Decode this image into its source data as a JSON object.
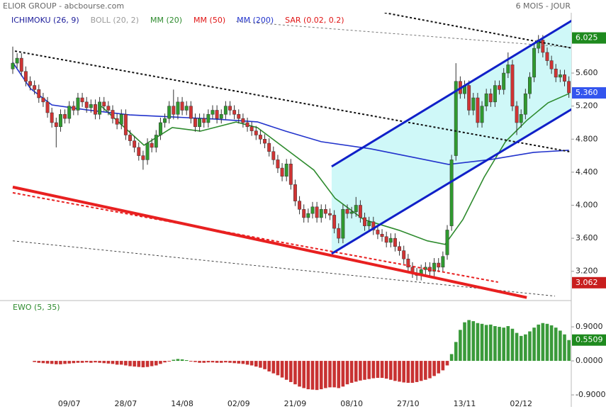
{
  "chart_data": [
    {
      "type": "candlestick",
      "title": "ELIOR GROUP - abcbourse.com",
      "period": "6 MOIS - JOUR",
      "categories": [
        null,
        null,
        null,
        null,
        null,
        null,
        null,
        null,
        null,
        null,
        null,
        null,
        null,
        "09/07",
        null,
        null,
        null,
        null,
        null,
        null,
        null,
        null,
        null,
        null,
        null,
        null,
        "28/07",
        null,
        null,
        null,
        null,
        null,
        null,
        null,
        null,
        null,
        null,
        null,
        null,
        "14/08",
        null,
        null,
        null,
        null,
        null,
        null,
        null,
        null,
        null,
        null,
        null,
        null,
        "02/09",
        null,
        null,
        null,
        null,
        null,
        null,
        null,
        null,
        null,
        null,
        null,
        null,
        "21/09",
        null,
        null,
        null,
        null,
        null,
        null,
        null,
        null,
        null,
        null,
        null,
        null,
        "08/10",
        null,
        null,
        null,
        null,
        null,
        null,
        null,
        null,
        null,
        null,
        null,
        null,
        "27/10",
        null,
        null,
        null,
        null,
        null,
        null,
        null,
        null,
        null,
        null,
        null,
        null,
        "13/11",
        null,
        null,
        null,
        null,
        null,
        null,
        null,
        null,
        null,
        null,
        null,
        null,
        "02/12",
        null,
        null,
        null,
        null,
        null,
        null,
        null,
        null,
        null,
        null,
        null
      ],
      "open": [
        5.65,
        5.72,
        5.78,
        5.62,
        5.5,
        5.45,
        5.4,
        5.3,
        5.25,
        5.12,
        5.0,
        4.95,
        5.1,
        5.05,
        5.2,
        5.15,
        5.3,
        5.25,
        5.18,
        5.22,
        5.1,
        5.25,
        5.2,
        5.15,
        5.05,
        4.98,
        5.1,
        4.85,
        4.78,
        4.7,
        4.6,
        4.55,
        4.75,
        4.7,
        4.85,
        5.0,
        5.05,
        5.2,
        5.1,
        5.25,
        5.15,
        5.2,
        5.05,
        4.95,
        5.05,
        5.0,
        5.1,
        5.15,
        5.05,
        5.1,
        5.2,
        5.15,
        5.1,
        5.05,
        5.0,
        4.95,
        4.9,
        4.85,
        4.8,
        4.75,
        4.65,
        4.55,
        4.45,
        4.35,
        4.5,
        4.25,
        4.05,
        3.95,
        3.85,
        3.9,
        3.98,
        3.85,
        3.95,
        3.9,
        3.88,
        3.72,
        3.6,
        3.95,
        3.9,
        3.92,
        4.0,
        3.85,
        3.75,
        3.8,
        3.7,
        3.65,
        3.62,
        3.55,
        3.6,
        3.5,
        3.45,
        3.35,
        3.25,
        3.18,
        3.15,
        3.22,
        3.25,
        3.2,
        3.3,
        3.25,
        3.4,
        3.75,
        4.6,
        5.5,
        5.35,
        5.45,
        5.15,
        5.3,
        5.0,
        5.2,
        5.35,
        5.25,
        5.45,
        5.4,
        5.6,
        5.7,
        5.2,
        5.0,
        5.1,
        5.35,
        5.55,
        5.9,
        6.0,
        5.85,
        5.75,
        5.65,
        5.55,
        5.58,
        5.5
      ],
      "high": [
        5.92,
        5.84,
        5.84,
        5.68,
        5.56,
        5.51,
        5.46,
        5.36,
        5.31,
        5.18,
        5.06,
        5.16,
        5.16,
        5.26,
        5.26,
        5.36,
        5.36,
        5.31,
        5.28,
        5.28,
        5.31,
        5.31,
        5.26,
        5.21,
        5.11,
        5.16,
        5.16,
        4.91,
        4.84,
        4.76,
        4.66,
        4.81,
        4.81,
        4.91,
        5.06,
        5.11,
        5.26,
        5.4,
        5.31,
        5.31,
        5.26,
        5.26,
        5.11,
        5.11,
        5.11,
        5.16,
        5.21,
        5.21,
        5.16,
        5.26,
        5.26,
        5.21,
        5.16,
        5.11,
        5.06,
        5.01,
        4.96,
        4.91,
        4.86,
        4.81,
        4.71,
        4.61,
        4.51,
        4.56,
        4.56,
        4.31,
        4.11,
        4.01,
        3.96,
        4.04,
        4.04,
        4.01,
        4.01,
        3.96,
        3.94,
        3.78,
        4.01,
        4.01,
        3.98,
        4.1,
        4.06,
        3.91,
        3.86,
        3.86,
        3.76,
        3.71,
        3.68,
        3.66,
        3.66,
        3.56,
        3.51,
        3.41,
        3.31,
        3.24,
        3.28,
        3.31,
        3.31,
        3.36,
        3.36,
        3.44,
        3.76,
        4.61,
        5.72,
        5.56,
        5.51,
        5.51,
        5.36,
        5.36,
        5.26,
        5.41,
        5.41,
        5.51,
        5.51,
        5.66,
        5.85,
        5.76,
        5.26,
        5.16,
        5.41,
        5.61,
        5.96,
        6.06,
        6.06,
        5.91,
        5.81,
        5.71,
        5.64,
        5.64,
        5.56
      ],
      "low": [
        5.59,
        5.66,
        5.56,
        5.44,
        5.39,
        5.34,
        5.24,
        5.19,
        5.06,
        4.94,
        4.7,
        4.89,
        4.99,
        4.99,
        5.09,
        5.09,
        5.19,
        5.12,
        5.12,
        5.04,
        5.04,
        5.14,
        5.09,
        4.99,
        4.92,
        4.92,
        4.79,
        4.72,
        4.64,
        4.54,
        4.43,
        4.49,
        4.64,
        4.64,
        4.79,
        4.94,
        4.99,
        5.04,
        5.04,
        5.09,
        5.09,
        4.99,
        4.89,
        4.89,
        4.94,
        4.94,
        5.04,
        4.99,
        4.99,
        5.04,
        5.09,
        5.04,
        4.99,
        4.94,
        4.89,
        4.84,
        4.79,
        4.74,
        4.69,
        4.59,
        4.49,
        4.39,
        4.29,
        4.29,
        4.19,
        3.99,
        3.89,
        3.79,
        3.79,
        3.84,
        3.79,
        3.79,
        3.84,
        3.82,
        3.66,
        3.54,
        3.54,
        3.84,
        3.84,
        3.86,
        3.79,
        3.69,
        3.69,
        3.64,
        3.59,
        3.56,
        3.49,
        3.49,
        3.44,
        3.39,
        3.29,
        3.19,
        3.12,
        3.09,
        3.09,
        3.16,
        3.14,
        3.14,
        3.19,
        3.19,
        3.34,
        3.69,
        4.54,
        5.29,
        5.29,
        5.09,
        5.09,
        4.94,
        4.94,
        5.14,
        5.19,
        5.19,
        5.34,
        5.34,
        5.54,
        5.14,
        4.85,
        4.94,
        5.04,
        5.29,
        5.49,
        5.84,
        5.79,
        5.69,
        5.59,
        5.49,
        5.49,
        5.44,
        5.3
      ],
      "close": [
        5.72,
        5.78,
        5.62,
        5.5,
        5.45,
        5.4,
        5.3,
        5.25,
        5.12,
        5.0,
        4.95,
        5.1,
        5.05,
        5.2,
        5.15,
        5.3,
        5.25,
        5.18,
        5.22,
        5.1,
        5.25,
        5.2,
        5.15,
        5.05,
        4.98,
        5.1,
        4.85,
        4.78,
        4.7,
        4.6,
        4.55,
        4.75,
        4.7,
        4.85,
        5.0,
        5.05,
        5.2,
        5.1,
        5.25,
        5.15,
        5.2,
        5.05,
        4.95,
        5.05,
        5.0,
        5.1,
        5.15,
        5.05,
        5.1,
        5.2,
        5.15,
        5.1,
        5.05,
        5.0,
        4.95,
        4.9,
        4.85,
        4.8,
        4.75,
        4.65,
        4.55,
        4.45,
        4.35,
        4.5,
        4.25,
        4.05,
        3.95,
        3.85,
        3.9,
        3.98,
        3.85,
        3.95,
        3.9,
        3.88,
        3.72,
        3.6,
        3.95,
        3.9,
        3.92,
        4.0,
        3.85,
        3.75,
        3.8,
        3.7,
        3.65,
        3.62,
        3.55,
        3.6,
        3.5,
        3.45,
        3.35,
        3.25,
        3.18,
        3.15,
        3.22,
        3.25,
        3.2,
        3.3,
        3.25,
        3.38,
        3.7,
        4.55,
        5.5,
        5.35,
        5.45,
        5.15,
        5.3,
        5.0,
        5.2,
        5.35,
        5.25,
        5.45,
        5.4,
        5.6,
        5.7,
        5.2,
        5.0,
        5.1,
        5.35,
        5.55,
        5.9,
        6.0,
        5.85,
        5.75,
        5.65,
        5.55,
        5.58,
        5.5,
        5.36
      ],
      "up_color": "#2f9a2f",
      "down_color": "#d03434",
      "ylim": [
        2.88,
        6.33
      ],
      "yticks": [
        {
          "value": 3.2,
          "label": "3.200"
        },
        {
          "value": 3.6,
          "label": "3.600"
        },
        {
          "value": 4.0,
          "label": "4.000"
        },
        {
          "value": 4.4,
          "label": "4.400"
        },
        {
          "value": 4.8,
          "label": "4.800"
        },
        {
          "value": 5.2,
          "label": "5.200"
        },
        {
          "value": 5.6,
          "label": "5.600"
        }
      ],
      "indicators": [
        {
          "name": "ICHIMOKU (26, 9)",
          "color": "#1b1b9a"
        },
        {
          "name": "BOLL (20, 2)",
          "color": "#9a9a9a"
        },
        {
          "name": "MM (20)",
          "color": "#2e8b2e",
          "x": [
            20.4,
            30.2,
            36.7,
            43.2,
            51.4,
            56.3,
            62.8,
            69.3,
            74.2,
            80.8,
            88.9,
            95.4,
            99.5,
            103.6,
            108.5,
            113.4,
            118.3,
            123.2,
            128
          ],
          "values": [
            5.197,
            4.726,
            4.94,
            4.897,
            5.008,
            4.94,
            4.683,
            4.426,
            4.083,
            3.826,
            3.697,
            3.569,
            3.526,
            3.826,
            4.34,
            4.769,
            5.026,
            5.24,
            5.351
          ]
        },
        {
          "name": "MM (50)",
          "color": "#e01414"
        },
        {
          "name": "MM (200)",
          "color": "#2233cc",
          "x": [
            0,
            4.1,
            9,
            17.1,
            26.9,
            36.7,
            46.5,
            56.3,
            62.8,
            71,
            82.4,
            92.2,
            100.3,
            110.1,
            119.9,
            128
          ],
          "values": [
            5.729,
            5.411,
            5.214,
            5.154,
            5.094,
            5.069,
            5.043,
            5.009,
            4.897,
            4.769,
            4.683,
            4.58,
            4.494,
            4.554,
            4.64,
            4.666
          ]
        },
        {
          "name": "SAR (0.02, 0.2)",
          "color": "#e01414"
        }
      ],
      "channel": {
        "color": "#cff8f8",
        "x": [
          73.4,
          128.9
        ],
        "upper": [
          4.469,
          6.243
        ],
        "lower": [
          3.414,
          5.171
        ]
      },
      "trendlines": [
        {
          "color": "#111111",
          "dash": "3,3",
          "width": 2,
          "x": [
            0.5,
            128.1
          ],
          "values": [
            5.866,
            4.649
          ]
        },
        {
          "color": "#111111",
          "dash": "3,3",
          "width": 2,
          "x": [
            85.6,
            128.9
          ],
          "values": [
            6.33,
            5.9
          ]
        },
        {
          "color": "#777777",
          "dash": "3,3",
          "width": 1,
          "x": [
            51.4,
            128.9
          ],
          "values": [
            6.226,
            5.909
          ]
        },
        {
          "color": "#444444",
          "dash": "3,3",
          "width": 1,
          "x": [
            0,
            124.8
          ],
          "values": [
            3.569,
            2.9
          ]
        },
        {
          "color": "#e82020",
          "dash": "none",
          "width": 4,
          "x": [
            0,
            118.3
          ],
          "values": [
            4.22,
            2.883
          ]
        },
        {
          "color": "#e82020",
          "dash": "4,3",
          "width": 2,
          "x": [
            0,
            111.7
          ],
          "values": [
            4.151,
            3.069
          ]
        },
        {
          "color": "#1020c8",
          "dash": "none",
          "width": 3,
          "x": [
            73.4,
            128.9
          ],
          "values": [
            4.469,
            6.243
          ]
        },
        {
          "color": "#1020c8",
          "dash": "none",
          "width": 3,
          "x": [
            73.4,
            128.9
          ],
          "values": [
            3.414,
            5.171
          ]
        }
      ],
      "price_labels": [
        6.025,
        {
          "value": 5.36,
          "label": "5.360"
        },
        3.062
      ],
      "price_label_colors": [
        "#1e8a1e",
        "#3355ee",
        "#c81e1e"
      ]
    },
    {
      "type": "bar",
      "title": "EWO (5, 35)",
      "title_color": "#2e8b2e",
      "values": [
        null,
        null,
        null,
        null,
        null,
        -0.03,
        -0.05,
        -0.06,
        -0.07,
        -0.08,
        -0.09,
        -0.09,
        -0.08,
        -0.07,
        -0.06,
        -0.05,
        -0.05,
        -0.04,
        -0.05,
        -0.04,
        -0.05,
        -0.06,
        -0.07,
        -0.08,
        -0.1,
        -0.1,
        -0.12,
        -0.14,
        -0.15,
        -0.16,
        -0.17,
        -0.16,
        -0.14,
        -0.12,
        -0.08,
        -0.04,
        -0.01,
        0.03,
        0.05,
        0.04,
        0.02,
        -0.01,
        -0.03,
        -0.05,
        -0.05,
        -0.04,
        -0.04,
        -0.05,
        -0.05,
        -0.04,
        -0.05,
        -0.06,
        -0.07,
        -0.08,
        -0.1,
        -0.12,
        -0.15,
        -0.18,
        -0.22,
        -0.28,
        -0.33,
        -0.38,
        -0.44,
        -0.5,
        -0.56,
        -0.62,
        -0.68,
        -0.72,
        -0.75,
        -0.76,
        -0.77,
        -0.75,
        -0.72,
        -0.7,
        -0.7,
        -0.72,
        -0.68,
        -0.62,
        -0.58,
        -0.55,
        -0.52,
        -0.5,
        -0.48,
        -0.46,
        -0.45,
        -0.45,
        -0.47,
        -0.5,
        -0.53,
        -0.55,
        -0.57,
        -0.58,
        -0.58,
        -0.56,
        -0.53,
        -0.5,
        -0.46,
        -0.4,
        -0.33,
        -0.25,
        -0.12,
        0.18,
        0.5,
        0.82,
        1.02,
        1.08,
        1.05,
        1.0,
        0.98,
        0.95,
        0.96,
        0.92,
        0.9,
        0.88,
        0.92,
        0.85,
        0.74,
        0.66,
        0.7,
        0.78,
        0.88,
        0.96,
        1.0,
        0.98,
        0.94,
        0.88,
        0.8,
        0.7,
        0.5509
      ],
      "color": "#3a9a3a",
      "negative_color": "#c83232",
      "last_color": "#1e8a1e",
      "ylim": [
        -1.18,
        1.52
      ],
      "yticks": [
        {
          "value": 0.9,
          "label": "0.9000"
        },
        {
          "value": 0,
          "label": "0.0000"
        },
        {
          "value": -0.9,
          "label": "-0.9000"
        }
      ]
    }
  ]
}
